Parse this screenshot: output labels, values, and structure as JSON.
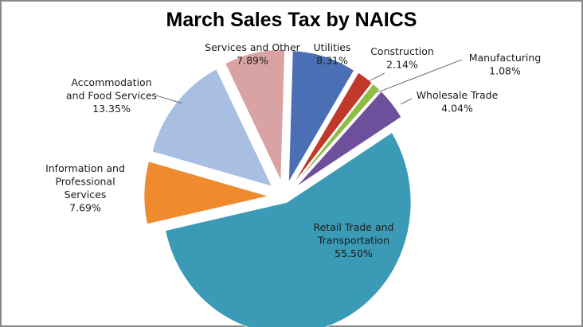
{
  "chart_data": {
    "type": "pie",
    "title": "March Sales Tax by NAICS",
    "slices": [
      {
        "name": "Utilities",
        "percent": 8.31,
        "percent_label": "8.31%",
        "color": "#4a6fb5",
        "exploded": true
      },
      {
        "name": "Construction",
        "percent": 2.14,
        "percent_label": "2.14%",
        "color": "#c0392b",
        "exploded": true
      },
      {
        "name": "Manufacturing",
        "percent": 1.08,
        "percent_label": "1.08%",
        "color": "#8fbc45",
        "exploded": true
      },
      {
        "name": "Wholesale Trade",
        "percent": 4.04,
        "percent_label": "4.04%",
        "color": "#6e4f9c",
        "exploded": true
      },
      {
        "name": "Retail Trade and Transportation",
        "percent": 55.5,
        "percent_label": "55.50%",
        "color": "#3b9bb6",
        "exploded": true
      },
      {
        "name": "Information and Professional Services",
        "percent": 7.69,
        "percent_label": "7.69%",
        "color": "#ef8a2e",
        "exploded": true
      },
      {
        "name": "Accommodation and Food Services",
        "percent": 13.35,
        "percent_label": "13.35%",
        "color": "#a9bfe2",
        "exploded": true
      },
      {
        "name": "Services and Other",
        "percent": 7.89,
        "percent_label": "7.89%",
        "color": "#d9a3a3",
        "exploded": true
      }
    ],
    "legend": "none",
    "data_labels": "category-and-percent"
  }
}
